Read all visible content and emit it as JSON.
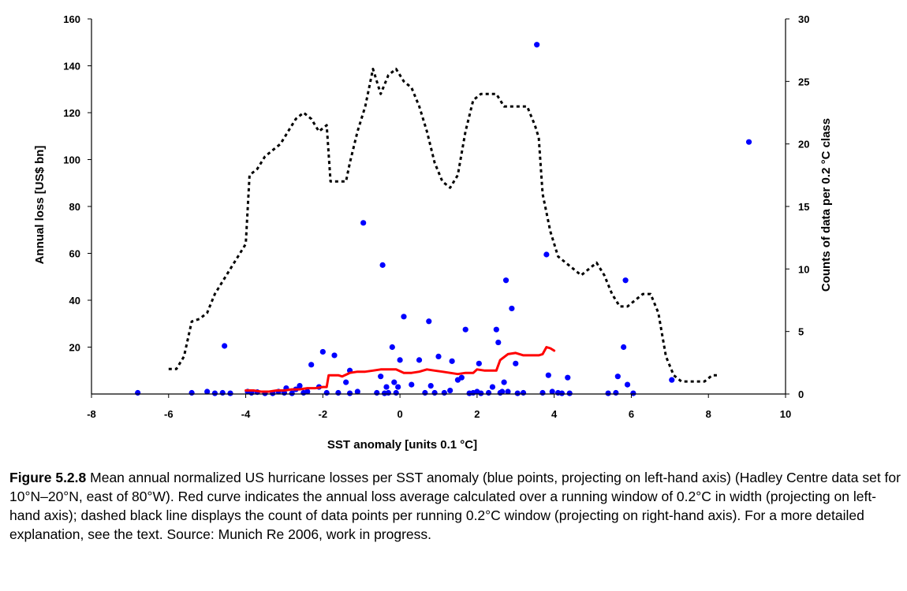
{
  "chart_data": {
    "type": "scatter",
    "xlabel": "SST anomaly [units 0.1 °C]",
    "ylabel_left": "Annual loss [US$ bn]",
    "ylabel_right": "Counts of data per 0.2 °C class",
    "xlim": [
      -8,
      10
    ],
    "ylim_left": [
      0,
      160
    ],
    "ylim_right": [
      0,
      30
    ],
    "x_ticks": [
      "-8",
      "-6",
      "-4",
      "-2",
      "0",
      "2",
      "4",
      "6",
      "8",
      "10"
    ],
    "y_left_ticks": [
      "20",
      "40",
      "60",
      "80",
      "100",
      "120",
      "140",
      "160"
    ],
    "y_right_ticks": [
      "0",
      "5",
      "10",
      "15",
      "20",
      "25",
      "30"
    ],
    "grid": false,
    "colors": {
      "points": "#0000ff",
      "mean_curve": "#ff0000",
      "count_curve": "#000000"
    },
    "series": [
      {
        "kind": "scatter",
        "axis": "left",
        "points": [
          [
            -6.8,
            0.5
          ],
          [
            -5.4,
            0.5
          ],
          [
            -5.0,
            1.0
          ],
          [
            -4.8,
            0.3
          ],
          [
            -4.6,
            0.5
          ],
          [
            -4.55,
            20.5
          ],
          [
            -4.4,
            0.3
          ],
          [
            -3.95,
            1.0
          ],
          [
            -3.85,
            0.5
          ],
          [
            -3.7,
            0.8
          ],
          [
            -3.5,
            0.3
          ],
          [
            -3.3,
            0.3
          ],
          [
            -3.15,
            1.0
          ],
          [
            -3.0,
            0.5
          ],
          [
            -2.95,
            2.5
          ],
          [
            -2.8,
            0.3
          ],
          [
            -2.7,
            2.0
          ],
          [
            -2.6,
            3.5
          ],
          [
            -2.5,
            0.5
          ],
          [
            -2.4,
            1.0
          ],
          [
            -2.3,
            12.5
          ],
          [
            -2.1,
            3.0
          ],
          [
            -2.0,
            18.0
          ],
          [
            -1.9,
            0.5
          ],
          [
            -1.7,
            16.5
          ],
          [
            -1.6,
            0.5
          ],
          [
            -1.4,
            5.0
          ],
          [
            -1.3,
            0.3
          ],
          [
            -1.3,
            10.0
          ],
          [
            -1.1,
            1.0
          ],
          [
            -0.95,
            73.0
          ],
          [
            -0.6,
            0.5
          ],
          [
            -0.5,
            7.5
          ],
          [
            -0.45,
            55.0
          ],
          [
            -0.4,
            0.3
          ],
          [
            -0.35,
            3.0
          ],
          [
            -0.3,
            0.5
          ],
          [
            -0.2,
            20.0
          ],
          [
            -0.15,
            5.0
          ],
          [
            -0.1,
            0.5
          ],
          [
            -0.05,
            3.0
          ],
          [
            0.0,
            14.5
          ],
          [
            0.1,
            33.0
          ],
          [
            0.3,
            4.0
          ],
          [
            0.5,
            14.5
          ],
          [
            0.65,
            0.5
          ],
          [
            0.75,
            31.0
          ],
          [
            0.8,
            3.5
          ],
          [
            0.9,
            0.5
          ],
          [
            1.0,
            16.0
          ],
          [
            1.15,
            0.5
          ],
          [
            1.3,
            1.5
          ],
          [
            1.35,
            14.0
          ],
          [
            1.5,
            6.0
          ],
          [
            1.6,
            7.0
          ],
          [
            1.7,
            27.5
          ],
          [
            1.8,
            0.3
          ],
          [
            1.9,
            0.5
          ],
          [
            2.0,
            1.0
          ],
          [
            2.05,
            13.0
          ],
          [
            2.1,
            0.3
          ],
          [
            2.3,
            0.5
          ],
          [
            2.4,
            3.0
          ],
          [
            2.5,
            27.5
          ],
          [
            2.55,
            22.0
          ],
          [
            2.6,
            0.5
          ],
          [
            2.65,
            1.0
          ],
          [
            2.7,
            5.0
          ],
          [
            2.75,
            48.5
          ],
          [
            2.8,
            1.0
          ],
          [
            2.9,
            36.5
          ],
          [
            3.0,
            13.0
          ],
          [
            3.05,
            0.3
          ],
          [
            3.2,
            0.5
          ],
          [
            3.55,
            149.0
          ],
          [
            3.7,
            0.5
          ],
          [
            3.8,
            59.5
          ],
          [
            3.85,
            8.0
          ],
          [
            3.95,
            1.0
          ],
          [
            4.1,
            0.5
          ],
          [
            4.2,
            0.3
          ],
          [
            4.35,
            7.0
          ],
          [
            4.4,
            0.3
          ],
          [
            5.4,
            0.3
          ],
          [
            5.6,
            0.5
          ],
          [
            5.65,
            7.5
          ],
          [
            5.8,
            20.0
          ],
          [
            5.85,
            48.5
          ],
          [
            5.9,
            4.0
          ],
          [
            6.05,
            0.3
          ],
          [
            7.05,
            6.0
          ],
          [
            9.05,
            107.5
          ]
        ]
      },
      {
        "kind": "line",
        "axis": "left",
        "style": "solid",
        "points": [
          [
            -4.0,
            1.5
          ],
          [
            -3.8,
            1.5
          ],
          [
            -3.6,
            1.0
          ],
          [
            -3.4,
            1.0
          ],
          [
            -3.2,
            1.5
          ],
          [
            -3.0,
            1.5
          ],
          [
            -2.8,
            2.0
          ],
          [
            -2.6,
            2.0
          ],
          [
            -2.4,
            2.5
          ],
          [
            -2.2,
            2.5
          ],
          [
            -2.0,
            3.0
          ],
          [
            -1.9,
            3.0
          ],
          [
            -1.85,
            8.0
          ],
          [
            -1.6,
            8.0
          ],
          [
            -1.5,
            7.5
          ],
          [
            -1.3,
            9.0
          ],
          [
            -1.1,
            9.5
          ],
          [
            -0.9,
            9.5
          ],
          [
            -0.7,
            10.0
          ],
          [
            -0.5,
            10.5
          ],
          [
            -0.3,
            10.5
          ],
          [
            -0.1,
            10.5
          ],
          [
            0.1,
            9.0
          ],
          [
            0.3,
            9.0
          ],
          [
            0.5,
            9.5
          ],
          [
            0.7,
            10.5
          ],
          [
            0.9,
            10.0
          ],
          [
            1.1,
            9.5
          ],
          [
            1.3,
            9.0
          ],
          [
            1.5,
            8.5
          ],
          [
            1.7,
            9.0
          ],
          [
            1.9,
            9.0
          ],
          [
            2.0,
            10.5
          ],
          [
            2.2,
            10.0
          ],
          [
            2.4,
            10.0
          ],
          [
            2.5,
            10.0
          ],
          [
            2.6,
            14.5
          ],
          [
            2.8,
            17.0
          ],
          [
            3.0,
            17.5
          ],
          [
            3.2,
            16.5
          ],
          [
            3.4,
            16.5
          ],
          [
            3.6,
            16.5
          ],
          [
            3.7,
            17.0
          ],
          [
            3.8,
            20.0
          ],
          [
            3.9,
            19.5
          ],
          [
            4.0,
            18.5
          ]
        ]
      },
      {
        "kind": "line",
        "axis": "right",
        "style": "dashed",
        "points": [
          [
            -6.0,
            2.0
          ],
          [
            -5.8,
            2.0
          ],
          [
            -5.6,
            3.0
          ],
          [
            -5.4,
            5.8
          ],
          [
            -5.2,
            6.0
          ],
          [
            -5.0,
            6.5
          ],
          [
            -4.8,
            8.0
          ],
          [
            -4.6,
            9.0
          ],
          [
            -4.4,
            10.0
          ],
          [
            -4.2,
            11.0
          ],
          [
            -4.0,
            12.0
          ],
          [
            -3.9,
            17.5
          ],
          [
            -3.7,
            18.0
          ],
          [
            -3.5,
            19.0
          ],
          [
            -3.3,
            19.5
          ],
          [
            -3.1,
            20.0
          ],
          [
            -2.9,
            21.0
          ],
          [
            -2.7,
            22.0
          ],
          [
            -2.5,
            22.5
          ],
          [
            -2.3,
            22.0
          ],
          [
            -2.1,
            21.0
          ],
          [
            -1.9,
            21.5
          ],
          [
            -1.8,
            17.0
          ],
          [
            -1.6,
            17.0
          ],
          [
            -1.4,
            17.0
          ],
          [
            -1.3,
            18.5
          ],
          [
            -1.1,
            21.0
          ],
          [
            -0.9,
            23.0
          ],
          [
            -0.7,
            26.0
          ],
          [
            -0.5,
            24.0
          ],
          [
            -0.3,
            25.5
          ],
          [
            -0.1,
            26.0
          ],
          [
            0.1,
            25.0
          ],
          [
            0.3,
            24.5
          ],
          [
            0.5,
            23.0
          ],
          [
            0.7,
            21.0
          ],
          [
            0.9,
            18.5
          ],
          [
            1.1,
            17.0
          ],
          [
            1.3,
            16.5
          ],
          [
            1.5,
            17.5
          ],
          [
            1.7,
            21.0
          ],
          [
            1.9,
            23.5
          ],
          [
            2.1,
            24.0
          ],
          [
            2.3,
            24.0
          ],
          [
            2.5,
            24.0
          ],
          [
            2.7,
            23.0
          ],
          [
            2.9,
            23.0
          ],
          [
            3.1,
            23.0
          ],
          [
            3.3,
            23.0
          ],
          [
            3.5,
            21.5
          ],
          [
            3.6,
            20.5
          ],
          [
            3.7,
            16.0
          ],
          [
            3.9,
            13.0
          ],
          [
            4.1,
            11.0
          ],
          [
            4.3,
            10.5
          ],
          [
            4.5,
            10.0
          ],
          [
            4.7,
            9.5
          ],
          [
            4.9,
            10.0
          ],
          [
            5.1,
            10.5
          ],
          [
            5.3,
            9.5
          ],
          [
            5.5,
            8.0
          ],
          [
            5.7,
            7.0
          ],
          [
            5.9,
            7.0
          ],
          [
            6.1,
            7.5
          ],
          [
            6.3,
            8.0
          ],
          [
            6.5,
            8.0
          ],
          [
            6.7,
            6.5
          ],
          [
            6.9,
            3.0
          ],
          [
            7.1,
            1.5
          ],
          [
            7.3,
            1.0
          ],
          [
            7.5,
            1.0
          ],
          [
            7.7,
            1.0
          ],
          [
            7.9,
            1.0
          ],
          [
            8.1,
            1.5
          ],
          [
            8.3,
            1.5
          ]
        ]
      }
    ]
  },
  "caption": {
    "figure_label": "Figure 5.2.8",
    "text": " Mean annual normalized US hurricane losses per SST anomaly (blue points, projecting on left-hand axis) (Hadley Centre data set for 10°N–20°N, east of 80°W). Red curve indicates the annual loss average calculated over a running window of 0.2°C in width (projecting on left-hand axis); dashed black line displays the count of data points per running 0.2°C window (projecting on right-hand axis). For a more detailed explanation, see the text. Source: Munich Re 2006, work in progress."
  }
}
